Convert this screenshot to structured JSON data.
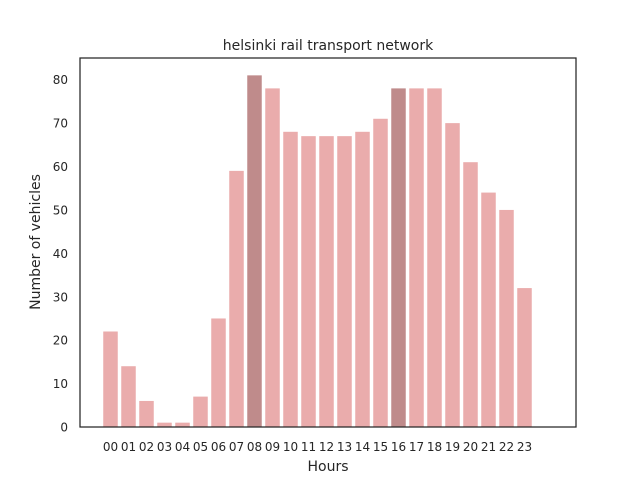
{
  "chart_data": {
    "type": "bar",
    "title": "helsinki rail transport network",
    "xlabel": "Hours",
    "ylabel": "Number of vehicles",
    "categories": [
      "00",
      "01",
      "02",
      "03",
      "04",
      "05",
      "06",
      "07",
      "08",
      "09",
      "10",
      "11",
      "12",
      "13",
      "14",
      "15",
      "16",
      "17",
      "18",
      "19",
      "20",
      "21",
      "22",
      "23"
    ],
    "values": [
      22,
      14,
      6,
      1,
      1,
      7,
      25,
      59,
      81,
      78,
      68,
      67,
      67,
      67,
      68,
      71,
      78,
      78,
      78,
      70,
      61,
      54,
      50,
      32
    ],
    "highlighted_categories": [
      "08",
      "16"
    ],
    "ylim": [
      0,
      85
    ],
    "yticks": [
      0,
      10,
      20,
      30,
      40,
      50,
      60,
      70,
      80
    ],
    "grid": false,
    "colors": {
      "bar": "#eaacac",
      "bar_highlight": "#bf8b8b",
      "axes": "#262626",
      "text": "#262626"
    }
  }
}
